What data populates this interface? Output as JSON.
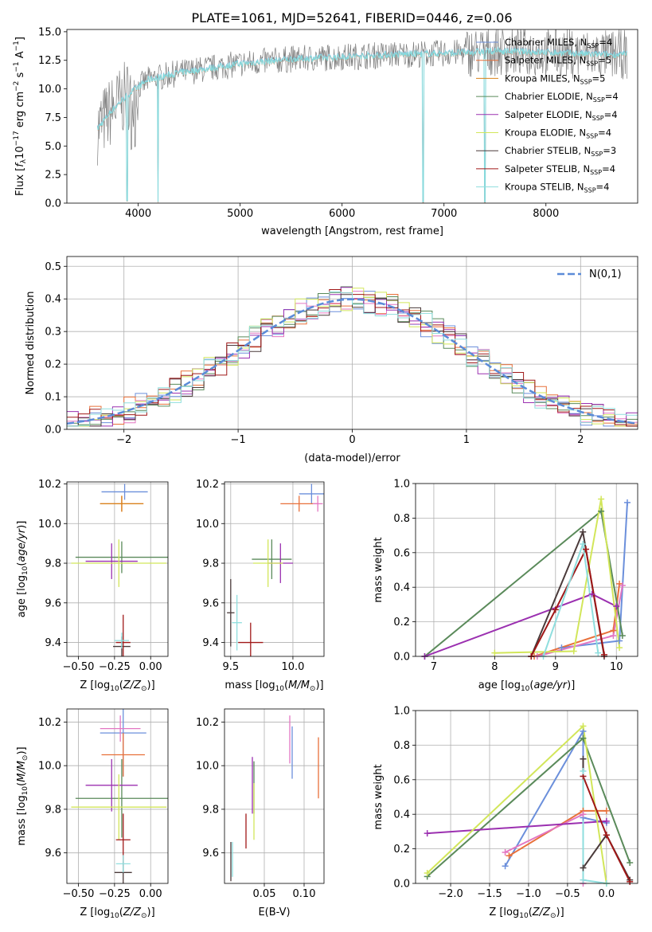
{
  "figure": {
    "title": "PLATE=1061, MJD=52641, FIBERID=0446, z=0.06"
  },
  "legend": [
    {
      "label": "Chabrier MILES, N",
      "sub": "SSP",
      "tail": "=4",
      "color": "#6b8fdb"
    },
    {
      "label": "Salpeter MILES, N",
      "sub": "SSP",
      "tail": "=5",
      "color": "#e8703a"
    },
    {
      "label": "Kroupa MILES, N",
      "sub": "SSP",
      "tail": "=5",
      "color": "#d9821a"
    },
    {
      "label": "Chabrier ELODIE, N",
      "sub": "SSP",
      "tail": "=4",
      "color": "#5a8a5a"
    },
    {
      "label": "Salpeter ELODIE, N",
      "sub": "SSP",
      "tail": "=4",
      "color": "#9b30b0"
    },
    {
      "label": "Kroupa ELODIE, N",
      "sub": "SSP",
      "tail": "=4",
      "color": "#d2e65a"
    },
    {
      "label": "Chabrier STELIB, N",
      "sub": "SSP",
      "tail": "=3",
      "color": "#4a3a3a"
    },
    {
      "label": "Salpeter STELIB, N",
      "sub": "SSP",
      "tail": "=4",
      "color": "#a01818"
    },
    {
      "label": "Kroupa STELIB, N",
      "sub": "SSP",
      "tail": "=4",
      "color": "#8fdede"
    }
  ],
  "chart_data": [
    {
      "id": "spectrum",
      "type": "line",
      "xlabel": "wavelength [Angstrom, rest frame]",
      "ylabel": "Flux [f_λ 10^-17 erg cm^-2 s^-1 A^-1]",
      "xlim": [
        3300,
        8900
      ],
      "ylim": [
        0,
        15.2
      ],
      "xticks": [
        4000,
        5000,
        6000,
        7000,
        8000
      ],
      "yticks": [
        0.0,
        2.5,
        5.0,
        7.5,
        10.0,
        12.5,
        15.0
      ],
      "continuum": [
        [
          3600,
          6.5
        ],
        [
          3750,
          8.2
        ],
        [
          3900,
          9.5
        ],
        [
          4100,
          10.8
        ],
        [
          4400,
          11.4
        ],
        [
          4700,
          11.8
        ],
        [
          5000,
          12.2
        ],
        [
          5500,
          12.6
        ],
        [
          6000,
          12.8
        ],
        [
          6500,
          13.0
        ],
        [
          7000,
          13.1
        ],
        [
          7500,
          13.3
        ],
        [
          8000,
          13.2
        ],
        [
          8500,
          13.0
        ]
      ],
      "data_color": "#7f7f7f",
      "model_color": "#87d9dc"
    },
    {
      "id": "residual-hist",
      "type": "bar",
      "xlabel": "(data-model)/error",
      "ylabel": "Normed distribution",
      "xlim": [
        -2.5,
        2.5
      ],
      "ylim": [
        0,
        0.53
      ],
      "xticks": [
        -2,
        -1,
        0,
        1,
        2
      ],
      "yticks": [
        0.0,
        0.1,
        0.2,
        0.3,
        0.4,
        0.5
      ],
      "legend": "N(0,1)",
      "gauss_color": "#5b8bd8"
    },
    {
      "id": "age-vs-Z",
      "type": "scatter",
      "xlabel": "Z [log10(Z/Z⊙)]",
      "ylabel": "age [log10(age/yr)]",
      "xlim": [
        -0.58,
        0.12
      ],
      "ylim": [
        9.33,
        10.21
      ],
      "xticks": [
        -0.5,
        -0.25,
        0.0
      ],
      "yticks": [
        9.4,
        9.6,
        9.8,
        10.0,
        10.2
      ],
      "points": [
        {
          "x": -0.18,
          "xerr": 0.16,
          "y": 10.16,
          "yerr": 0.04,
          "color": "#6b8fdb"
        },
        {
          "x": -0.2,
          "xerr": 0.15,
          "y": 10.1,
          "yerr": 0.04,
          "color": "#e8703a"
        },
        {
          "x": -0.2,
          "xerr": 0.15,
          "y": 10.1,
          "yerr": 0.04,
          "color": "#d9821a"
        },
        {
          "x": -0.2,
          "xerr": 0.32,
          "y": 9.83,
          "yerr": 0.08,
          "color": "#5a8a5a"
        },
        {
          "x": -0.27,
          "xerr": 0.18,
          "y": 9.81,
          "yerr": 0.09,
          "color": "#9b30b0"
        },
        {
          "x": -0.22,
          "xerr": 0.33,
          "y": 9.8,
          "yerr": 0.12,
          "color": "#d2e65a"
        },
        {
          "x": -0.2,
          "xerr": 0.06,
          "y": 9.38,
          "yerr": 0.05,
          "color": "#4a3a3a"
        },
        {
          "x": -0.19,
          "xerr": 0.05,
          "y": 9.4,
          "yerr": 0.14,
          "color": "#a01818"
        },
        {
          "x": -0.2,
          "xerr": 0.05,
          "y": 9.41,
          "yerr": 0.04,
          "color": "#8fdede"
        }
      ]
    },
    {
      "id": "age-vs-mass",
      "type": "scatter",
      "xlabel": "mass [log10(M/M⊙)]",
      "ylabel": "",
      "xlim": [
        9.45,
        10.25
      ],
      "ylim": [
        9.33,
        10.21
      ],
      "xticks": [
        9.5,
        10.0
      ],
      "yticks": [
        9.4,
        9.6,
        9.8,
        10.0,
        10.2
      ],
      "points": [
        {
          "x": 10.15,
          "xerr": 0.1,
          "y": 10.15,
          "yerr": 0.05,
          "color": "#6b8fdb"
        },
        {
          "x": 10.05,
          "xerr": 0.15,
          "y": 10.1,
          "yerr": 0.04,
          "color": "#e8703a"
        },
        {
          "x": 10.2,
          "xerr": 0.04,
          "y": 10.1,
          "yerr": 0.04,
          "color": "#e377c2"
        },
        {
          "x": 9.83,
          "xerr": 0.16,
          "y": 9.82,
          "yerr": 0.1,
          "color": "#5a8a5a"
        },
        {
          "x": 9.9,
          "xerr": 0.1,
          "y": 9.8,
          "yerr": 0.1,
          "color": "#9b30b0"
        },
        {
          "x": 9.8,
          "xerr": 0.12,
          "y": 9.8,
          "yerr": 0.12,
          "color": "#d2e65a"
        },
        {
          "x": 9.5,
          "xerr": 0.03,
          "y": 9.55,
          "yerr": 0.17,
          "color": "#4a3a3a"
        },
        {
          "x": 9.66,
          "xerr": 0.1,
          "y": 9.4,
          "yerr": 0.1,
          "color": "#a01818"
        },
        {
          "x": 9.55,
          "xerr": 0.04,
          "y": 9.5,
          "yerr": 0.14,
          "color": "#8fdede"
        }
      ]
    },
    {
      "id": "weight-vs-age",
      "type": "line",
      "xlabel": "age [log10(age/yr)]",
      "ylabel": "mass weight",
      "xlim": [
        6.7,
        10.35
      ],
      "ylim": [
        0,
        1.0
      ],
      "xticks": [
        7,
        8,
        9,
        10
      ],
      "yticks": [
        0.0,
        0.2,
        0.4,
        0.6,
        0.8,
        1.0
      ],
      "series": [
        {
          "color": "#6b8fdb",
          "x": [
            9.1,
            10.05,
            10.18
          ],
          "y": [
            0.05,
            0.09,
            0.89
          ]
        },
        {
          "color": "#e8703a",
          "x": [
            8.65,
            9.95,
            10.05
          ],
          "y": [
            0.0,
            0.15,
            0.42
          ]
        },
        {
          "color": "#e377c2",
          "x": [
            8.7,
            9.95,
            10.1
          ],
          "y": [
            0.0,
            0.12,
            0.41
          ]
        },
        {
          "color": "#5a8a5a",
          "x": [
            6.85,
            9.75,
            10.1
          ],
          "y": [
            0.0,
            0.84,
            0.12
          ]
        },
        {
          "color": "#9b30b0",
          "x": [
            6.85,
            9.6,
            10.0
          ],
          "y": [
            0.0,
            0.36,
            0.29
          ]
        },
        {
          "color": "#d2e65a",
          "x": [
            8.0,
            9.3,
            9.75,
            10.05
          ],
          "y": [
            0.02,
            0.03,
            0.91,
            0.05
          ]
        },
        {
          "color": "#4a3a3a",
          "x": [
            8.6,
            9.45,
            9.8
          ],
          "y": [
            0.0,
            0.72,
            0.0
          ]
        },
        {
          "color": "#a01818",
          "x": [
            8.6,
            9.0,
            9.5,
            9.8
          ],
          "y": [
            0.0,
            0.27,
            0.62,
            0.01
          ]
        },
        {
          "color": "#8fdede",
          "x": [
            8.8,
            9.45,
            9.7
          ],
          "y": [
            0.0,
            0.65,
            0.02
          ]
        }
      ]
    },
    {
      "id": "mass-vs-Z",
      "type": "scatter",
      "xlabel": "Z [log10(Z/Z⊙)]",
      "ylabel": "mass [log10(M/M⊙)]",
      "xlim": [
        -0.58,
        0.12
      ],
      "ylim": [
        9.46,
        10.26
      ],
      "xticks": [
        -0.5,
        -0.25,
        0.0
      ],
      "yticks": [
        9.6,
        9.8,
        10.0,
        10.2
      ],
      "points": [
        {
          "x": -0.19,
          "xerr": 0.16,
          "y": 10.15,
          "yerr": 0.2,
          "color": "#6b8fdb"
        },
        {
          "x": -0.19,
          "xerr": 0.15,
          "y": 10.05,
          "yerr": 0.1,
          "color": "#e8703a"
        },
        {
          "x": -0.21,
          "xerr": 0.14,
          "y": 10.17,
          "yerr": 0.06,
          "color": "#e377c2"
        },
        {
          "x": -0.2,
          "xerr": 0.32,
          "y": 9.85,
          "yerr": 0.18,
          "color": "#5a8a5a"
        },
        {
          "x": -0.27,
          "xerr": 0.18,
          "y": 9.91,
          "yerr": 0.12,
          "color": "#9b30b0"
        },
        {
          "x": -0.22,
          "xerr": 0.33,
          "y": 9.81,
          "yerr": 0.15,
          "color": "#d2e65a"
        },
        {
          "x": -0.19,
          "xerr": 0.06,
          "y": 9.51,
          "yerr": 0.05,
          "color": "#4a3a3a"
        },
        {
          "x": -0.19,
          "xerr": 0.05,
          "y": 9.66,
          "yerr": 0.12,
          "color": "#a01818"
        },
        {
          "x": -0.19,
          "xerr": 0.05,
          "y": 9.55,
          "yerr": 0.04,
          "color": "#8fdede"
        }
      ]
    },
    {
      "id": "mass-vs-ebv",
      "type": "scatter",
      "xlabel": "E(B-V)",
      "ylabel": "",
      "xlim": [
        0.0,
        0.125
      ],
      "ylim": [
        9.46,
        10.26
      ],
      "xticks": [
        0.05,
        0.1
      ],
      "yticks": [
        9.6,
        9.8,
        10.0,
        10.2
      ],
      "points": [
        {
          "x": 0.085,
          "yerr": 0.12,
          "y": 10.06,
          "color": "#6b8fdb"
        },
        {
          "x": 0.118,
          "yerr": 0.14,
          "y": 9.99,
          "color": "#e8703a"
        },
        {
          "x": 0.082,
          "yerr": 0.11,
          "y": 10.12,
          "color": "#e377c2"
        },
        {
          "x": 0.037,
          "yerr": 0.12,
          "y": 9.9,
          "color": "#5a8a5a"
        },
        {
          "x": 0.035,
          "yerr": 0.13,
          "y": 9.91,
          "color": "#9b30b0"
        },
        {
          "x": 0.037,
          "yerr": 0.13,
          "y": 9.79,
          "color": "#d2e65a"
        },
        {
          "x": 0.008,
          "yerr": 0.09,
          "y": 9.56,
          "color": "#4a3a3a"
        },
        {
          "x": 0.027,
          "yerr": 0.08,
          "y": 9.7,
          "color": "#a01818"
        },
        {
          "x": 0.01,
          "yerr": 0.08,
          "y": 9.57,
          "color": "#8fdede"
        }
      ]
    },
    {
      "id": "weight-vs-Z",
      "type": "line",
      "xlabel": "Z [log10(Z/Z⊙)]",
      "ylabel": "mass weight",
      "xlim": [
        -2.45,
        0.4
      ],
      "ylim": [
        0,
        1.0
      ],
      "xticks": [
        -2.0,
        -1.5,
        -1.0,
        -0.5,
        0.0
      ],
      "yticks": [
        0.0,
        0.2,
        0.4,
        0.6,
        0.8,
        1.0
      ],
      "series": [
        {
          "color": "#6b8fdb",
          "x": [
            -1.3,
            -0.3,
            -0.3,
            0.0
          ],
          "y": [
            0.1,
            0.88,
            0.38,
            0.35
          ]
        },
        {
          "color": "#e8703a",
          "x": [
            -1.25,
            -0.3,
            0.0
          ],
          "y": [
            0.16,
            0.42,
            0.42
          ]
        },
        {
          "color": "#e377c2",
          "x": [
            -1.3,
            -0.3,
            -0.3
          ],
          "y": [
            0.18,
            0.4,
            0.0
          ]
        },
        {
          "color": "#5a8a5a",
          "x": [
            -2.3,
            -0.3,
            0.3
          ],
          "y": [
            0.04,
            0.84,
            0.12
          ]
        },
        {
          "color": "#9b30b0",
          "x": [
            -2.3,
            0.0
          ],
          "y": [
            0.29,
            0.36
          ]
        },
        {
          "color": "#d2e65a",
          "x": [
            -2.3,
            -0.3,
            0.0
          ],
          "y": [
            0.06,
            0.91,
            0.0
          ]
        },
        {
          "color": "#4a3a3a",
          "x": [
            -0.3,
            -0.3,
            0.0,
            0.3
          ],
          "y": [
            0.72,
            0.09,
            0.28,
            0.02
          ]
        },
        {
          "color": "#a01818",
          "x": [
            -0.3,
            0.0,
            0.3
          ],
          "y": [
            0.62,
            0.28,
            0.01
          ]
        },
        {
          "color": "#8fdede",
          "x": [
            -0.3,
            -0.3,
            0.0
          ],
          "y": [
            0.65,
            0.02,
            0.0
          ]
        }
      ]
    }
  ]
}
